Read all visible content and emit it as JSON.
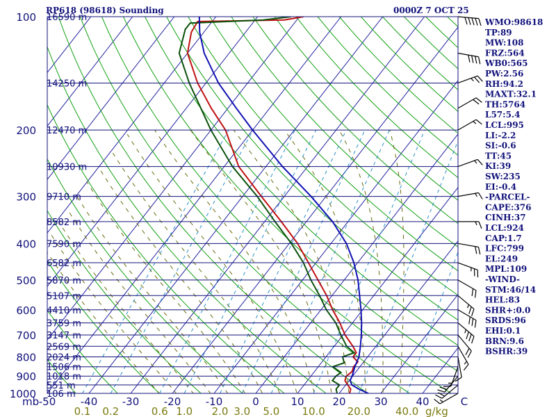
{
  "chart_data": {
    "type": "line",
    "title": "RP618 (98618) Sounding",
    "time": "0000Z  7 OCT 25",
    "yaxis_label": "mb",
    "xaxis_unit": "C",
    "mixing_unit": "g/kg",
    "pressure_ticks": [
      100,
      200,
      300,
      400,
      500,
      600,
      700,
      800,
      900,
      1000
    ],
    "height_labels": [
      {
        "p": 100,
        "label": "16590 m"
      },
      {
        "p": 150,
        "label": "14250 m"
      },
      {
        "p": 200,
        "label": "12470 m"
      },
      {
        "p": 250,
        "label": "10930 m"
      },
      {
        "p": 300,
        "label": "9710 m"
      },
      {
        "p": 350,
        "label": "8582 m"
      },
      {
        "p": 400,
        "label": "7590 m"
      },
      {
        "p": 450,
        "label": "6582 m"
      },
      {
        "p": 500,
        "label": "5870 m"
      },
      {
        "p": 550,
        "label": "5107 m"
      },
      {
        "p": 600,
        "label": "4410 m"
      },
      {
        "p": 650,
        "label": "3759 m"
      },
      {
        "p": 700,
        "label": "3147 m"
      },
      {
        "p": 750,
        "label": "2569 m"
      },
      {
        "p": 800,
        "label": "2024 m"
      },
      {
        "p": 850,
        "label": "1506 m"
      },
      {
        "p": 900,
        "label": "1018 m"
      },
      {
        "p": 950,
        "label": "551 m"
      },
      {
        "p": 1000,
        "label": "106 m"
      }
    ],
    "temp_ticks": [
      "-50",
      "-40",
      "-30",
      "-20",
      "-10",
      "0",
      "10",
      "20",
      "30",
      "40",
      "C"
    ],
    "temp_tick_values": [
      -50,
      -40,
      -30,
      -20,
      -10,
      0,
      10,
      20,
      30,
      40,
      50
    ],
    "mixing_ratios": [
      {
        "label": "0.1",
        "w": 0.1
      },
      {
        "label": "0.2",
        "w": 0.2
      },
      {
        "label": "0.6",
        "w": 0.6
      },
      {
        "label": "1.0",
        "w": 1.0
      },
      {
        "label": "2.0",
        "w": 2.0
      },
      {
        "label": "3.0",
        "w": 3.0
      },
      {
        "label": "5.0",
        "w": 5.0
      },
      {
        "label": "10.0",
        "w": 10.0
      },
      {
        "label": "20.0",
        "w": 20.0
      },
      {
        "label": "40.0",
        "w": 40.0
      }
    ],
    "series": [
      {
        "name": "Temperature",
        "color": "#c01010",
        "points": [
          [
            1000,
            22.5
          ],
          [
            975,
            22.0
          ],
          [
            950,
            20.5
          ],
          [
            925,
            19.0
          ],
          [
            900,
            18.5
          ],
          [
            875,
            19.0
          ],
          [
            850,
            18.5
          ],
          [
            825,
            18.6
          ],
          [
            800,
            16.5
          ],
          [
            780,
            16.5
          ],
          [
            750,
            14.5
          ],
          [
            700,
            10.5
          ],
          [
            650,
            7.0
          ],
          [
            600,
            2.8
          ],
          [
            550,
            -1.3
          ],
          [
            500,
            -6.3
          ],
          [
            450,
            -11.8
          ],
          [
            400,
            -18.0
          ],
          [
            350,
            -26.0
          ],
          [
            300,
            -35.5
          ],
          [
            250,
            -46.5
          ],
          [
            200,
            -56.5
          ],
          [
            175,
            -64.0
          ],
          [
            150,
            -72.0
          ],
          [
            125,
            -80.0
          ],
          [
            110,
            -83.0
          ],
          [
            103,
            -83.5
          ],
          [
            102,
            -63.0
          ],
          [
            100,
            -59.0
          ]
        ]
      },
      {
        "name": "Dewpoint",
        "color": "#0a500a",
        "points": [
          [
            1000,
            19.5
          ],
          [
            975,
            18.5
          ],
          [
            950,
            18.5
          ],
          [
            925,
            16.0
          ],
          [
            900,
            16.0
          ],
          [
            880,
            16.5
          ],
          [
            850,
            13.5
          ],
          [
            830,
            15.5
          ],
          [
            800,
            14.0
          ],
          [
            780,
            16.0
          ],
          [
            750,
            13.0
          ],
          [
            700,
            9.5
          ],
          [
            650,
            6.0
          ],
          [
            600,
            1.3
          ],
          [
            550,
            -3.0
          ],
          [
            500,
            -8.0
          ],
          [
            450,
            -13.0
          ],
          [
            400,
            -19.5
          ],
          [
            350,
            -27.5
          ],
          [
            300,
            -36.5
          ],
          [
            250,
            -48.0
          ],
          [
            200,
            -60.0
          ],
          [
            175,
            -66.5
          ],
          [
            150,
            -74.0
          ],
          [
            125,
            -82.0
          ],
          [
            108,
            -85.0
          ],
          [
            104,
            -85.0
          ],
          [
            102,
            -68.0
          ],
          [
            100,
            -62.0
          ]
        ]
      },
      {
        "name": "Parcel",
        "color": "#1010b4",
        "points": [
          [
            1000,
            27.0
          ],
          [
            975,
            24.0
          ],
          [
            950,
            21.5
          ],
          [
            924,
            20.2
          ],
          [
            900,
            19.9
          ],
          [
            850,
            18.8
          ],
          [
            800,
            17.9
          ],
          [
            750,
            16.3
          ],
          [
            700,
            14.4
          ],
          [
            650,
            12.2
          ],
          [
            600,
            9.6
          ],
          [
            550,
            6.6
          ],
          [
            500,
            3.3
          ],
          [
            450,
            -0.9
          ],
          [
            400,
            -6.3
          ],
          [
            350,
            -13.7
          ],
          [
            300,
            -23.6
          ],
          [
            250,
            -36.0
          ],
          [
            200,
            -50.0
          ],
          [
            175,
            -58.0
          ],
          [
            150,
            -67.0
          ],
          [
            125,
            -76.0
          ],
          [
            110,
            -81.0
          ],
          [
            100,
            -84.0
          ]
        ]
      }
    ],
    "indices": [
      "WMO:98618",
      "TP:89",
      "MW:108",
      "FRZ:564",
      "WB0:565",
      "PW:2.56",
      "RH:94.2",
      "MAXT:32.1",
      "TH:5764",
      "L57:5.4",
      "LCL:995",
      "LI:-2.2",
      "SI:-0.6",
      "TT:45",
      "KI:39",
      "SW:235",
      "EI:-0.4",
      "-PARCEL-",
      "CAPE:376",
      "CINH:37",
      "LCL:924",
      "CAP:1.7",
      "LFC:799",
      "EL:249",
      "MPL:109",
      "-WIND-",
      "STM:46/14",
      "HEL:83",
      "SHR+:0.0",
      "SRDS:96",
      "EHI:0.1",
      "BRN:9.6",
      "BSHR:39"
    ],
    "wind_barbs": [
      {
        "p": 100,
        "dir": 95,
        "spd": 50
      },
      {
        "p": 125,
        "dir": 100,
        "spd": 40
      },
      {
        "p": 150,
        "dir": 70,
        "spd": 25
      },
      {
        "p": 175,
        "dir": 60,
        "spd": 20
      },
      {
        "p": 200,
        "dir": 60,
        "spd": 15
      },
      {
        "p": 250,
        "dir": 70,
        "spd": 15
      },
      {
        "p": 300,
        "dir": 80,
        "spd": 15
      },
      {
        "p": 350,
        "dir": 90,
        "spd": 15
      },
      {
        "p": 400,
        "dir": 100,
        "spd": 20
      },
      {
        "p": 450,
        "dir": 110,
        "spd": 25
      },
      {
        "p": 500,
        "dir": 120,
        "spd": 20
      },
      {
        "p": 550,
        "dir": 130,
        "spd": 25
      },
      {
        "p": 600,
        "dir": 120,
        "spd": 30
      },
      {
        "p": 650,
        "dir": 130,
        "spd": 35
      },
      {
        "p": 700,
        "dir": 140,
        "spd": 20
      },
      {
        "p": 750,
        "dir": 150,
        "spd": 15
      },
      {
        "p": 800,
        "dir": 170,
        "spd": 10
      },
      {
        "p": 850,
        "dir": 200,
        "spd": 15
      },
      {
        "p": 900,
        "dir": 220,
        "spd": 20
      },
      {
        "p": 950,
        "dir": 230,
        "spd": 20
      },
      {
        "p": 1000,
        "dir": 240,
        "spd": 15
      }
    ]
  },
  "colors": {
    "axis": "#10107a",
    "isotherm": "#2020a0",
    "dry_adiabat": "#10a010",
    "moist_adiabat": "#6a6a10",
    "mixing_ratio": "#2a90c8",
    "labels": "#10107a",
    "mixing_labels": "#7a7a10"
  }
}
